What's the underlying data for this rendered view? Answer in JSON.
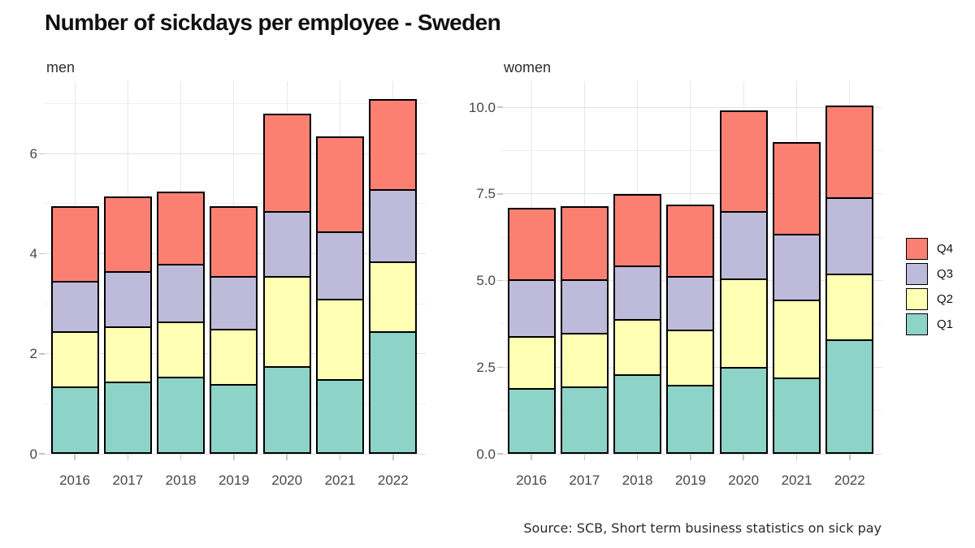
{
  "title": "Number of sickdays per employee - Sweden",
  "caption": "Source: SCB, Short term business statistics on sick pay",
  "panels": [
    {
      "label": "men"
    },
    {
      "label": "women"
    }
  ],
  "legend": {
    "position": "right",
    "items": [
      {
        "label": "Q4",
        "color": "#FB8072"
      },
      {
        "label": "Q3",
        "color": "#BEBADA"
      },
      {
        "label": "Q2",
        "color": "#FFFFB3"
      },
      {
        "label": "Q1",
        "color": "#8DD3C7"
      }
    ]
  },
  "chart_data": [
    {
      "type": "bar",
      "stacked": true,
      "panel": "men",
      "categories": [
        "2016",
        "2017",
        "2018",
        "2019",
        "2020",
        "2021",
        "2022"
      ],
      "series": [
        {
          "name": "Q1",
          "color": "#8DD3C7",
          "values": [
            1.35,
            1.45,
            1.55,
            1.4,
            1.75,
            1.5,
            2.45
          ]
        },
        {
          "name": "Q2",
          "color": "#FFFFB3",
          "values": [
            1.1,
            1.1,
            1.1,
            1.1,
            1.8,
            1.6,
            1.4
          ]
        },
        {
          "name": "Q3",
          "color": "#BEBADA",
          "values": [
            1.0,
            1.1,
            1.15,
            1.05,
            1.3,
            1.35,
            1.45
          ]
        },
        {
          "name": "Q4",
          "color": "#FB8072",
          "values": [
            1.5,
            1.5,
            1.45,
            1.4,
            1.95,
            1.9,
            1.8
          ]
        }
      ],
      "stack_totals": [
        4.95,
        5.15,
        5.25,
        4.95,
        6.8,
        6.35,
        7.1
      ],
      "y_axis": {
        "tick_values": [
          0,
          2,
          4,
          6
        ],
        "tick_labels": [
          "0",
          "2",
          "4",
          "6"
        ],
        "minor_ticks": [
          1,
          3,
          5,
          7
        ],
        "max": 7.45
      },
      "grid": true
    },
    {
      "type": "bar",
      "stacked": true,
      "panel": "women",
      "categories": [
        "2016",
        "2017",
        "2018",
        "2019",
        "2020",
        "2021",
        "2022"
      ],
      "series": [
        {
          "name": "Q1",
          "color": "#8DD3C7",
          "values": [
            1.9,
            1.95,
            2.3,
            2.0,
            2.5,
            2.2,
            3.3
          ]
        },
        {
          "name": "Q2",
          "color": "#FFFFB3",
          "values": [
            1.5,
            1.55,
            1.6,
            1.6,
            2.55,
            2.25,
            1.9
          ]
        },
        {
          "name": "Q3",
          "color": "#BEBADA",
          "values": [
            1.65,
            1.55,
            1.55,
            1.55,
            1.95,
            1.9,
            2.2
          ]
        },
        {
          "name": "Q4",
          "color": "#FB8072",
          "values": [
            2.05,
            2.1,
            2.05,
            2.05,
            2.9,
            2.65,
            2.65
          ]
        }
      ],
      "stack_totals": [
        7.1,
        7.15,
        7.5,
        7.2,
        9.9,
        9.0,
        10.05
      ],
      "y_axis": {
        "tick_values": [
          0,
          2.5,
          5,
          7.5,
          10
        ],
        "tick_labels": [
          "0.0",
          "2.5",
          "5.0",
          "7.5",
          "10.0"
        ],
        "minor_ticks": [
          1.25,
          3.75,
          6.25,
          8.75
        ],
        "max": 10.75
      },
      "grid": true
    }
  ]
}
